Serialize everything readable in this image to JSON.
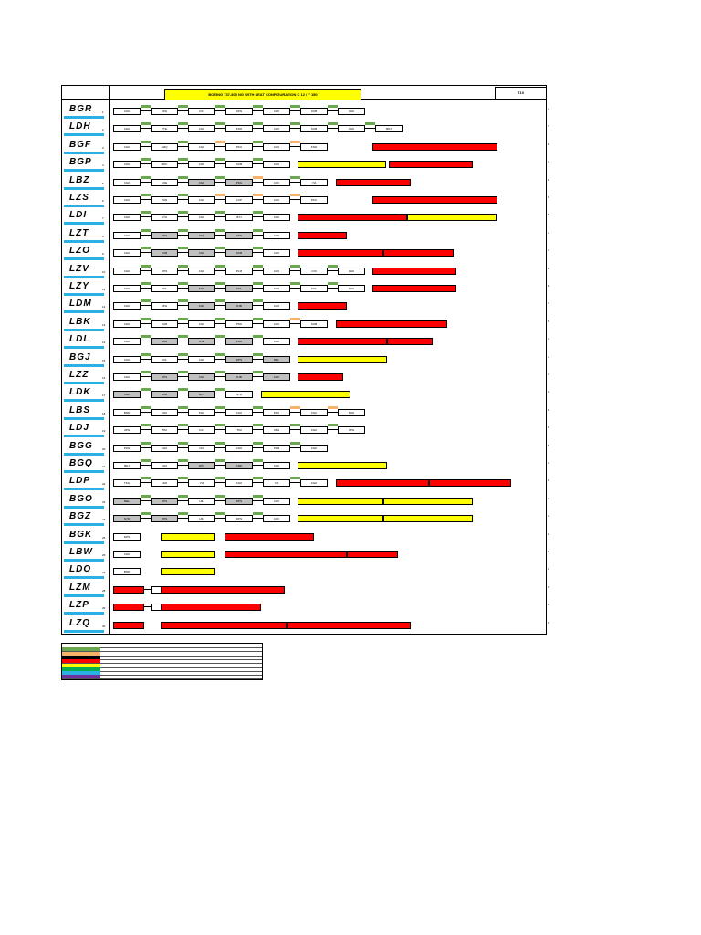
{
  "header": {
    "title": "BOEING 737-800 NG WITH SEAT CONFIGURATION C 12 / Y 150",
    "code": "T10"
  },
  "colors": {
    "stripe": "#2bb0e6",
    "flight_green": "#6aa84f",
    "flight_orange": "#f6b26b",
    "note_red": "#ff0000",
    "note_yellow": "#ffff00",
    "station_gray": "#c0c0c0"
  },
  "rows": [
    {
      "reg": "BGR",
      "num": "1",
      "segs": [
        "CGK",
        "UPG",
        "DJJ",
        "UPG",
        "CGK",
        "SUB",
        "CGK"
      ],
      "gray": [],
      "flights": [
        "g",
        "g",
        "g",
        "g",
        "g",
        "g"
      ],
      "notes": []
    },
    {
      "reg": "LDH",
      "num": "2",
      "segs": [
        "CGK",
        "TTE",
        "CGK",
        "KNO",
        "CGK",
        "SUB",
        "CGK",
        "BDJ"
      ],
      "gray": [],
      "flights": [
        "g",
        "g",
        "g",
        "g",
        "g",
        "g",
        "g"
      ],
      "notes": []
    },
    {
      "reg": "BGF",
      "num": "3",
      "segs": [
        "CGK",
        "AMQ",
        "CGK",
        "PKU",
        "CGK",
        "KNO"
      ],
      "gray": [],
      "flights": [
        "g",
        "g",
        "o",
        "g",
        "o"
      ],
      "notes": [
        {
          "t": "red",
          "x": 340,
          "w": 135,
          "text": ""
        }
      ]
    },
    {
      "reg": "BGP",
      "num": "4",
      "segs": [
        "CGK",
        "MDC",
        "CGK",
        "SUB",
        "CGK"
      ],
      "gray": [],
      "flights": [
        "g",
        "g",
        "g",
        "g"
      ],
      "notes": [
        {
          "t": "yel",
          "x": 258,
          "w": 95,
          "text": ""
        },
        {
          "t": "red",
          "x": 358,
          "w": 90,
          "text": ""
        }
      ]
    },
    {
      "reg": "LBZ",
      "num": "5",
      "segs": [
        "CGK",
        "KOE",
        "CGK",
        "PDG",
        "CGK",
        "YIA"
      ],
      "gray": [
        2,
        3
      ],
      "flights": [
        "g",
        "g",
        "g",
        "o",
        "g"
      ],
      "notes": [
        {
          "t": "red",
          "x": 300,
          "w": 80,
          "text": ""
        }
      ]
    },
    {
      "reg": "LZS",
      "num": "6",
      "segs": [
        "CGK",
        "PLW",
        "CGK",
        "LOP",
        "CGK",
        "PKU"
      ],
      "gray": [],
      "flights": [
        "g",
        "g",
        "o",
        "o",
        "o"
      ],
      "notes": [
        {
          "t": "red",
          "x": 340,
          "w": 135,
          "text": ""
        }
      ]
    },
    {
      "reg": "LDI",
      "num": "7",
      "segs": [
        "CGK",
        "GTO",
        "CGK",
        "BTJ",
        "CGK"
      ],
      "gray": [],
      "flights": [
        "g",
        "g",
        "g",
        "g"
      ],
      "notes": [
        {
          "t": "red",
          "x": 258,
          "w": 118,
          "text": ""
        },
        {
          "t": "yel",
          "x": 378,
          "w": 96,
          "text": ""
        }
      ]
    },
    {
      "reg": "LZT",
      "num": "8",
      "segs": [
        "CGK",
        "UPG",
        "KOL",
        "UPG",
        "CGK"
      ],
      "gray": [
        1,
        2,
        3
      ],
      "flights": [
        "g",
        "g",
        "g",
        "g"
      ],
      "notes": [
        {
          "t": "red",
          "x": 258,
          "w": 52,
          "text": ""
        }
      ]
    },
    {
      "reg": "LZO",
      "num": "9",
      "segs": [
        "CGK",
        "SUB",
        "CGK",
        "SUB",
        "CGK"
      ],
      "gray": [
        1,
        2,
        3
      ],
      "flights": [
        "g",
        "g",
        "g",
        "g"
      ],
      "notes": [
        {
          "t": "red",
          "x": 258,
          "w": 92,
          "text": ""
        },
        {
          "t": "red",
          "x": 352,
          "w": 75,
          "text": ""
        }
      ]
    },
    {
      "reg": "LZV",
      "num": "10",
      "segs": [
        "CGK",
        "DPS",
        "CGK",
        "PLM",
        "CGK",
        "CNI",
        "CGK"
      ],
      "gray": [],
      "flights": [
        "g",
        "g",
        "g",
        "g",
        "g",
        "g"
      ],
      "notes": [
        {
          "t": "red",
          "x": 340,
          "w": 90,
          "text": ""
        }
      ]
    },
    {
      "reg": "LZY",
      "num": "11",
      "segs": [
        "CGK",
        "KDL",
        "KNO",
        "KOL",
        "CGK",
        "KOL",
        "CGK"
      ],
      "gray": [
        2,
        3
      ],
      "flights": [
        "g",
        "g",
        "g",
        "g",
        "g",
        "g"
      ],
      "notes": [
        {
          "t": "red",
          "x": 340,
          "w": 90,
          "text": ""
        }
      ]
    },
    {
      "reg": "LDM",
      "num": "12",
      "segs": [
        "CGK",
        "UPG",
        "CGK",
        "DJB",
        "CGK"
      ],
      "gray": [
        2,
        3
      ],
      "flights": [
        "g",
        "g",
        "g",
        "g"
      ],
      "notes": [
        {
          "t": "red",
          "x": 258,
          "w": 52,
          "text": ""
        }
      ]
    },
    {
      "reg": "LBK",
      "num": "13",
      "segs": [
        "CGK",
        "SUB",
        "CGK",
        "PNK",
        "CGK",
        "SUB"
      ],
      "gray": [],
      "flights": [
        "g",
        "g",
        "g",
        "g",
        "o"
      ],
      "notes": [
        {
          "t": "red",
          "x": 300,
          "w": 120,
          "text": ""
        }
      ]
    },
    {
      "reg": "LDL",
      "num": "14",
      "segs": [
        "CGK",
        "BND",
        "DJB",
        "KNO",
        "CGK"
      ],
      "gray": [
        1,
        2,
        3
      ],
      "flights": [
        "g",
        "g",
        "g",
        "g"
      ],
      "notes": [
        {
          "t": "red",
          "x": 258,
          "w": 96,
          "text": ""
        },
        {
          "t": "red",
          "x": 356,
          "w": 48,
          "text": ""
        }
      ]
    },
    {
      "reg": "BGJ",
      "num": "15",
      "segs": [
        "CGK",
        "KOL",
        "CGK",
        "DPS",
        "MEL"
      ],
      "gray": [
        3,
        4
      ],
      "flights": [
        "g",
        "g",
        "g",
        "g"
      ],
      "notes": [
        {
          "t": "yel",
          "x": 258,
          "w": 96,
          "text": ""
        }
      ]
    },
    {
      "reg": "LZZ",
      "num": "16",
      "segs": [
        "CGK",
        "DPS",
        "CGK",
        "DJB",
        "CGK"
      ],
      "gray": [
        1,
        2,
        3,
        4
      ],
      "flights": [
        "g",
        "g",
        "g",
        "g"
      ],
      "notes": [
        {
          "t": "red",
          "x": 258,
          "w": 48,
          "text": ""
        }
      ]
    },
    {
      "reg": "LDK",
      "num": "17",
      "segs": [
        "CGK",
        "SUB",
        "DPS",
        "SYD"
      ],
      "gray": [
        0,
        1,
        2
      ],
      "flights": [
        "g",
        "g",
        "g"
      ],
      "notes": [
        {
          "t": "yel",
          "x": 218,
          "w": 96,
          "text": ""
        }
      ]
    },
    {
      "reg": "LBS",
      "num": "18",
      "segs": [
        "BND",
        "CGK",
        "PGK",
        "CGK",
        "PKU",
        "CGK",
        "PLW"
      ],
      "gray": [],
      "flights": [
        "g",
        "g",
        "g",
        "g",
        "o",
        "o"
      ],
      "notes": []
    },
    {
      "reg": "LDJ",
      "num": "19",
      "segs": [
        "UPG",
        "TIM",
        "DJJ",
        "TIM",
        "UPG",
        "CGK",
        "UPG"
      ],
      "gray": [],
      "flights": [
        "g",
        "g",
        "g",
        "g",
        "g",
        "g"
      ],
      "notes": []
    },
    {
      "reg": "BGG",
      "num": "20",
      "segs": [
        "PLW",
        "CGK",
        "KDI",
        "CGK",
        "PLM",
        "CGK"
      ],
      "gray": [],
      "flights": [
        "g",
        "g",
        "g",
        "g",
        "g"
      ],
      "notes": []
    },
    {
      "reg": "BGQ",
      "num": "21",
      "segs": [
        "BDJ",
        "CGK",
        "DPS",
        "CMK",
        "CGK"
      ],
      "gray": [
        2,
        3
      ],
      "flights": [
        "g",
        "g",
        "g",
        "g"
      ],
      "notes": [
        {
          "t": "yel",
          "x": 258,
          "w": 96,
          "text": ""
        }
      ]
    },
    {
      "reg": "LDP",
      "num": "22",
      "segs": [
        "TKG",
        "KNO",
        "YIA",
        "CGK",
        "YIA",
        "CGK"
      ],
      "gray": [],
      "flights": [
        "g",
        "g",
        "g",
        "g",
        "g"
      ],
      "notes": [
        {
          "t": "red",
          "x": 300,
          "w": 100,
          "text": ""
        },
        {
          "t": "red",
          "x": 402,
          "w": 88,
          "text": ""
        }
      ]
    },
    {
      "reg": "BGO",
      "num": "23",
      "segs": [
        "MEL",
        "DPS",
        "LBJ",
        "DPS",
        "CGK"
      ],
      "gray": [
        0,
        1,
        3
      ],
      "flights": [
        "g",
        "g",
        "g",
        "g"
      ],
      "notes": [
        {
          "t": "yel",
          "x": 258,
          "w": 92,
          "text": ""
        },
        {
          "t": "yel",
          "x": 352,
          "w": 96,
          "text": ""
        }
      ]
    },
    {
      "reg": "BGZ",
      "num": "24",
      "segs": [
        "SYD",
        "DPS",
        "LBJ",
        "DPS",
        "CGK"
      ],
      "gray": [
        0,
        1
      ],
      "flights": [
        "g",
        "g",
        "g",
        "g"
      ],
      "notes": [
        {
          "t": "yel",
          "x": 258,
          "w": 92,
          "text": ""
        },
        {
          "t": "yel",
          "x": 352,
          "w": 96,
          "text": ""
        }
      ]
    },
    {
      "reg": "BGK",
      "num": "25",
      "segs": [
        "DPS"
      ],
      "gray": [],
      "flights": [],
      "notes": [
        {
          "t": "yel",
          "x": 108,
          "w": 58,
          "text": ""
        },
        {
          "t": "red",
          "x": 178,
          "w": 96,
          "text": ""
        }
      ]
    },
    {
      "reg": "LBW",
      "num": "26",
      "segs": [
        "CGK"
      ],
      "gray": [],
      "flights": [],
      "notes": [
        {
          "t": "yel",
          "x": 108,
          "w": 58,
          "text": ""
        },
        {
          "t": "red",
          "x": 178,
          "w": 132,
          "text": ""
        },
        {
          "t": "red",
          "x": 312,
          "w": 54,
          "text": ""
        }
      ]
    },
    {
      "reg": "LDO",
      "num": "27",
      "segs": [
        "BND"
      ],
      "gray": [],
      "flights": [],
      "notes": [
        {
          "t": "yel",
          "x": 108,
          "w": 58,
          "text": ""
        }
      ]
    },
    {
      "reg": "LZM",
      "num": "28",
      "segs": [
        "",
        "",
        ""
      ],
      "gray": [],
      "flights": [],
      "notes": [
        {
          "t": "red",
          "x": 56,
          "w": 32,
          "text": ""
        },
        {
          "t": "red",
          "x": 108,
          "w": 134,
          "text": ""
        }
      ]
    },
    {
      "reg": "LZP",
      "num": "29",
      "segs": [
        "",
        ""
      ],
      "gray": [],
      "flights": [],
      "notes": [
        {
          "t": "red",
          "x": 56,
          "w": 32,
          "text": ""
        },
        {
          "t": "red",
          "x": 108,
          "w": 108,
          "text": ""
        }
      ]
    },
    {
      "reg": "LZQ",
      "num": "30",
      "segs": [
        ""
      ],
      "gray": [],
      "flights": [],
      "notes": [
        {
          "t": "red",
          "x": 56,
          "w": 32,
          "text": ""
        },
        {
          "t": "red",
          "x": 108,
          "w": 136,
          "text": ""
        },
        {
          "t": "red",
          "x": 246,
          "w": 134,
          "text": ""
        }
      ]
    }
  ],
  "right_numbers": [
    "4",
    "7",
    "8",
    "4",
    "6",
    "6",
    "5",
    "4",
    "4",
    "8",
    "8",
    "4",
    "5",
    "4",
    "4",
    "4",
    "3",
    "6",
    "6",
    "5",
    "4",
    "6",
    "4",
    "4",
    "1",
    "1",
    "1",
    "0",
    "0",
    "0"
  ],
  "legend": [
    {
      "color": "#ffffff",
      "text": ""
    },
    {
      "color": "#6aa84f",
      "text": ""
    },
    {
      "color": "#f6b26b",
      "text": ""
    },
    {
      "color": "#000000",
      "text": ""
    },
    {
      "color": "#ff0000",
      "text": ""
    },
    {
      "color": "#ffff00",
      "text": ""
    },
    {
      "color": "#00b050",
      "text": ""
    },
    {
      "color": "#2bb0e6",
      "text": ""
    },
    {
      "color": "#7030a0",
      "text": ""
    }
  ]
}
